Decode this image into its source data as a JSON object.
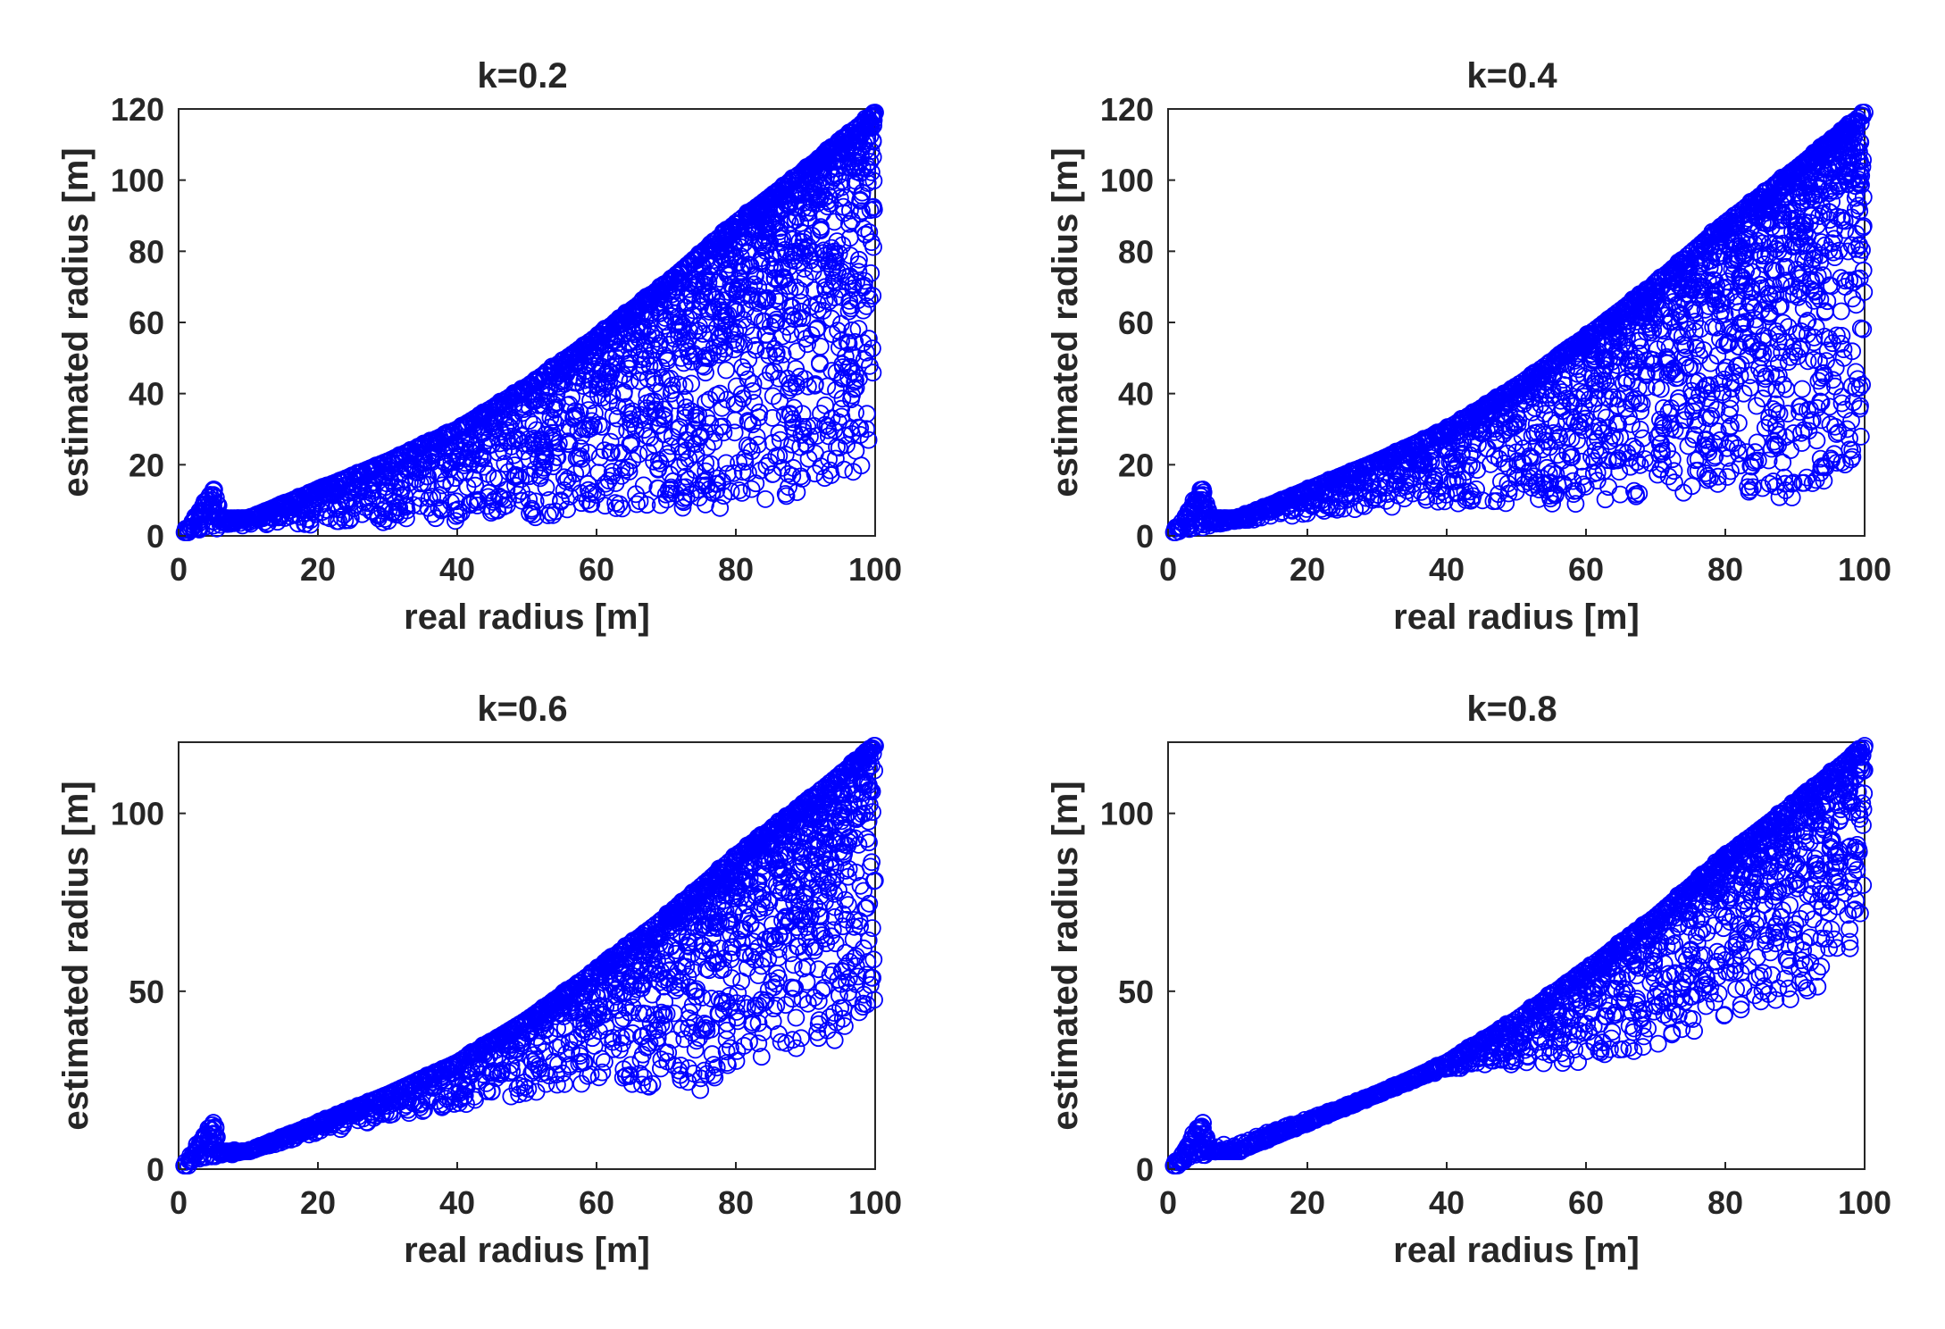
{
  "figure": {
    "marker_color": "#0000ff",
    "axis_color": "#262626"
  },
  "chart_data": [
    {
      "type": "scatter",
      "title": "k=0.2",
      "k": 0.2,
      "xlabel": "real radius [m]",
      "ylabel": "estimated radius [m]",
      "xlim": [
        0,
        100
      ],
      "ylim": [
        0,
        120
      ],
      "xticks": [
        0,
        20,
        40,
        60,
        80,
        100
      ],
      "yticks": [
        0,
        20,
        40,
        60,
        80,
        100,
        120
      ],
      "upper_envelope": [
        [
          1,
          1
        ],
        [
          5,
          13
        ],
        [
          6,
          5
        ],
        [
          10,
          5
        ],
        [
          20,
          13
        ],
        [
          30,
          21
        ],
        [
          40,
          30
        ],
        [
          50,
          42
        ],
        [
          60,
          56
        ],
        [
          70,
          71
        ],
        [
          80,
          88
        ],
        [
          90,
          103
        ],
        [
          100,
          119
        ]
      ],
      "lower_envelope": [
        [
          1,
          1
        ],
        [
          10,
          3
        ],
        [
          20,
          3
        ],
        [
          40,
          4
        ],
        [
          60,
          6
        ],
        [
          80,
          8
        ],
        [
          90,
          12
        ],
        [
          100,
          21
        ]
      ],
      "marker": "o",
      "color": "#0000ff"
    },
    {
      "type": "scatter",
      "title": "k=0.4",
      "k": 0.4,
      "xlabel": "real radius [m]",
      "ylabel": "estimated radius [m]",
      "xlim": [
        0,
        100
      ],
      "ylim": [
        0,
        120
      ],
      "xticks": [
        0,
        20,
        40,
        60,
        80,
        100
      ],
      "yticks": [
        0,
        20,
        40,
        60,
        80,
        100,
        120
      ],
      "upper_envelope": [
        [
          1,
          1
        ],
        [
          5,
          13
        ],
        [
          6,
          5
        ],
        [
          10,
          5
        ],
        [
          20,
          13
        ],
        [
          30,
          21
        ],
        [
          40,
          30
        ],
        [
          50,
          42
        ],
        [
          60,
          56
        ],
        [
          70,
          71
        ],
        [
          80,
          88
        ],
        [
          90,
          103
        ],
        [
          100,
          119
        ]
      ],
      "lower_envelope": [
        [
          1,
          1
        ],
        [
          10,
          4
        ],
        [
          20,
          6
        ],
        [
          40,
          9
        ],
        [
          60,
          8
        ],
        [
          80,
          13
        ],
        [
          90,
          10
        ],
        [
          100,
          22
        ]
      ],
      "marker": "o",
      "color": "#0000ff"
    },
    {
      "type": "scatter",
      "title": "k=0.6",
      "k": 0.6,
      "xlabel": "real radius [m]",
      "ylabel": "estimated radius [m]",
      "xlim": [
        0,
        100
      ],
      "ylim": [
        0,
        120
      ],
      "xticks": [
        0,
        20,
        40,
        60,
        80,
        100
      ],
      "yticks": [
        0,
        50,
        100
      ],
      "upper_envelope": [
        [
          1,
          1
        ],
        [
          5,
          13
        ],
        [
          6,
          5
        ],
        [
          10,
          5
        ],
        [
          20,
          13
        ],
        [
          30,
          21
        ],
        [
          40,
          30
        ],
        [
          50,
          42
        ],
        [
          60,
          56
        ],
        [
          70,
          71
        ],
        [
          80,
          88
        ],
        [
          90,
          103
        ],
        [
          100,
          119
        ]
      ],
      "lower_envelope": [
        [
          1,
          1
        ],
        [
          20,
          10
        ],
        [
          40,
          18
        ],
        [
          60,
          24
        ],
        [
          75,
          22
        ],
        [
          85,
          32
        ],
        [
          95,
          36
        ],
        [
          100,
          48
        ]
      ],
      "marker": "o",
      "color": "#0000ff"
    },
    {
      "type": "scatter",
      "title": "k=0.8",
      "k": 0.8,
      "xlabel": "real radius [m]",
      "ylabel": "estimated radius [m]",
      "xlim": [
        0,
        100
      ],
      "ylim": [
        0,
        120
      ],
      "xticks": [
        0,
        20,
        40,
        60,
        80,
        100
      ],
      "yticks": [
        0,
        50,
        100
      ],
      "upper_envelope": [
        [
          1,
          1
        ],
        [
          5,
          13
        ],
        [
          6,
          5
        ],
        [
          10,
          5
        ],
        [
          20,
          13
        ],
        [
          30,
          21
        ],
        [
          40,
          30
        ],
        [
          50,
          42
        ],
        [
          60,
          56
        ],
        [
          70,
          71
        ],
        [
          80,
          88
        ],
        [
          90,
          103
        ],
        [
          100,
          119
        ]
      ],
      "lower_envelope": [
        [
          1,
          1
        ],
        [
          40,
          28
        ],
        [
          46,
          29
        ],
        [
          62,
          30
        ],
        [
          85,
          45
        ],
        [
          92,
          49
        ],
        [
          100,
          67
        ]
      ],
      "marker": "o",
      "color": "#0000ff"
    }
  ]
}
